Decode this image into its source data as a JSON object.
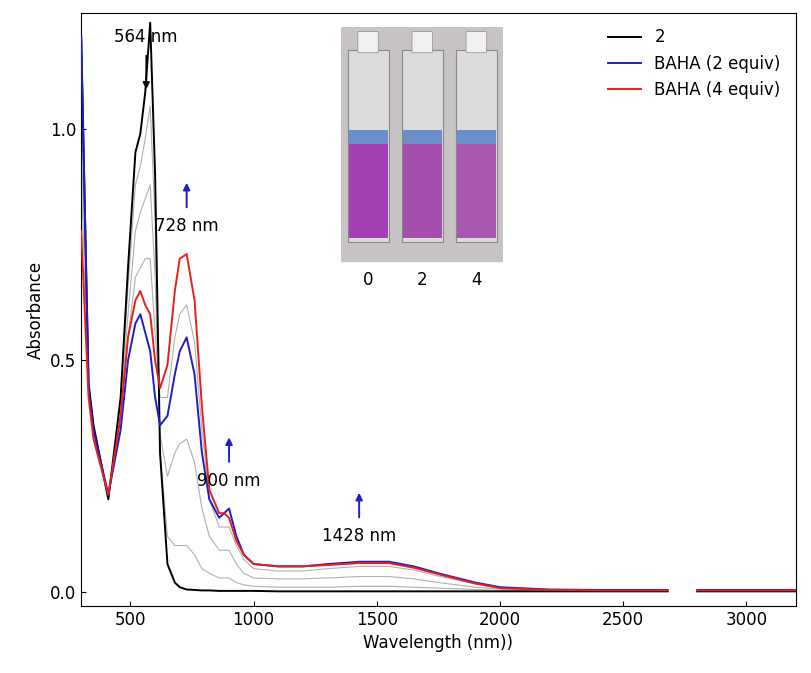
{
  "chart_data": {
    "type": "line",
    "x_label": "Wavelength (nm))",
    "y_label": "Absorbance",
    "xlim": [
      300,
      3200
    ],
    "ylim": [
      -0.03,
      1.25
    ],
    "xticks": [
      500,
      1000,
      1500,
      2000,
      2500,
      3000
    ],
    "yticks": [
      {
        "value": 0.0,
        "label": "0.0"
      },
      {
        "value": 0.5,
        "label": "0.5"
      },
      {
        "value": 1.0,
        "label": "1.0"
      }
    ],
    "legend": "upper right",
    "x": [
      300,
      330,
      350,
      410,
      460,
      490,
      520,
      540,
      560,
      580,
      600,
      620,
      650,
      680,
      700,
      728,
      760,
      790,
      820,
      860,
      880,
      900,
      930,
      960,
      1000,
      1100,
      1200,
      1300,
      1428,
      1550,
      1650,
      1750,
      1900,
      2000,
      2200,
      2400,
      2600,
      2680,
      2740,
      2800,
      3000,
      3200
    ],
    "series": [
      {
        "color": "#b0b0b0",
        "values": [
          1.1,
          0.45,
          0.36,
          0.2,
          0.41,
          0.66,
          0.88,
          0.92,
          0.98,
          1.05,
          0.8,
          0.3,
          0.12,
          0.1,
          0.1,
          0.1,
          0.08,
          0.05,
          0.04,
          0.03,
          0.03,
          0.03,
          0.02,
          0.015,
          0.012,
          0.01,
          0.01,
          0.01,
          0.012,
          0.012,
          0.01,
          0.008,
          0.005,
          0.003,
          0.002,
          0.002,
          0.002,
          0.002,
          null,
          0.002,
          0.002,
          0.002
        ]
      },
      {
        "color": "#b0b0b0",
        "values": [
          1.0,
          0.44,
          0.35,
          0.2,
          0.39,
          0.6,
          0.78,
          0.82,
          0.85,
          0.88,
          0.68,
          0.34,
          0.25,
          0.3,
          0.32,
          0.33,
          0.28,
          0.18,
          0.12,
          0.09,
          0.09,
          0.09,
          0.06,
          0.04,
          0.03,
          0.028,
          0.028,
          0.03,
          0.033,
          0.033,
          0.028,
          0.02,
          0.01,
          0.006,
          0.003,
          0.003,
          0.003,
          0.003,
          null,
          0.003,
          0.003,
          0.003
        ]
      },
      {
        "color": "#b0b0b0",
        "values": [
          0.9,
          0.43,
          0.34,
          0.21,
          0.37,
          0.55,
          0.68,
          0.7,
          0.72,
          0.72,
          0.56,
          0.42,
          0.42,
          0.55,
          0.6,
          0.62,
          0.54,
          0.35,
          0.2,
          0.14,
          0.14,
          0.14,
          0.1,
          0.07,
          0.05,
          0.045,
          0.045,
          0.05,
          0.055,
          0.055,
          0.047,
          0.034,
          0.017,
          0.008,
          0.004,
          0.003,
          0.003,
          0.003,
          null,
          0.003,
          0.003,
          0.003
        ]
      },
      {
        "name": "2",
        "color": "#000000",
        "values": [
          1.2,
          0.45,
          0.36,
          0.2,
          0.42,
          0.7,
          0.95,
          0.99,
          1.08,
          1.23,
          0.9,
          0.3,
          0.06,
          0.02,
          0.01,
          0.005,
          0.004,
          0.003,
          0.003,
          0.002,
          0.002,
          0.002,
          0.002,
          0.002,
          0.002,
          0.001,
          0.001,
          0.001,
          0.001,
          0.001,
          0.001,
          0.001,
          0.001,
          0.001,
          0.001,
          0.001,
          0.001,
          0.001,
          null,
          0.001,
          0.001,
          0.001
        ]
      },
      {
        "name": "BAHA (2 equiv)",
        "color": "#1f1fc8",
        "values": [
          1.2,
          0.44,
          0.35,
          0.21,
          0.35,
          0.5,
          0.58,
          0.6,
          0.56,
          0.52,
          0.42,
          0.36,
          0.38,
          0.47,
          0.52,
          0.55,
          0.47,
          0.3,
          0.2,
          0.16,
          0.17,
          0.18,
          0.12,
          0.08,
          0.06,
          0.055,
          0.055,
          0.06,
          0.065,
          0.065,
          0.055,
          0.04,
          0.02,
          0.01,
          0.005,
          0.004,
          0.004,
          0.004,
          null,
          0.004,
          0.004,
          0.004
        ]
      },
      {
        "name": "BAHA (4 equiv)",
        "color": "#e8201c",
        "values": [
          0.78,
          0.42,
          0.33,
          0.21,
          0.38,
          0.55,
          0.63,
          0.65,
          0.62,
          0.6,
          0.5,
          0.44,
          0.49,
          0.65,
          0.72,
          0.73,
          0.63,
          0.4,
          0.22,
          0.17,
          0.17,
          0.16,
          0.11,
          0.08,
          0.06,
          0.055,
          0.055,
          0.058,
          0.062,
          0.062,
          0.052,
          0.038,
          0.018,
          0.008,
          0.004,
          0.003,
          0.003,
          0.003,
          null,
          0.003,
          0.003,
          0.003
        ]
      }
    ],
    "annotations": [
      {
        "text": "564 nm",
        "x": 564,
        "y": 1.2
      },
      {
        "text": "728 nm",
        "x": 728,
        "y": 0.79
      },
      {
        "text": "900 nm",
        "x": 900,
        "y": 0.24
      },
      {
        "text": "1428 nm",
        "x": 1428,
        "y": 0.12
      }
    ],
    "inset_labels": [
      "0",
      "2",
      "4"
    ]
  }
}
